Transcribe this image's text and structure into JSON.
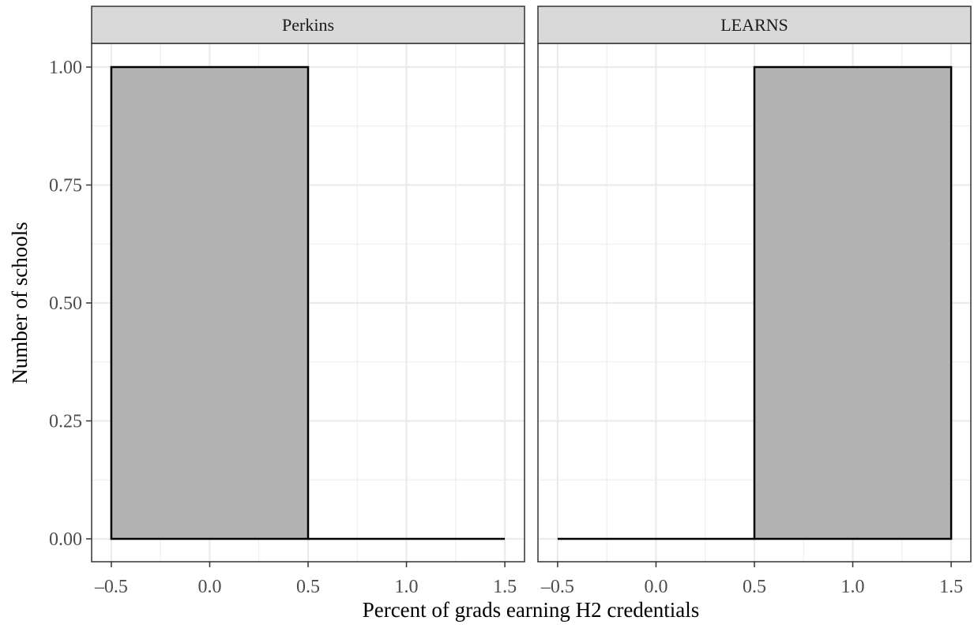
{
  "chart_data": {
    "type": "bar",
    "variant": "faceted histogram",
    "xlabel": "Percent of grads earning H2 credentials",
    "ylabel": "Number of schools",
    "xlim": [
      -0.5,
      1.5
    ],
    "ylim": [
      0,
      1
    ],
    "x_ticks": [
      "-0.5",
      "0.0",
      "0.5",
      "1.0",
      "1.5"
    ],
    "y_ticks": [
      "0.00",
      "0.25",
      "0.50",
      "0.75",
      "1.00"
    ],
    "grid": true,
    "colors": {
      "bar_fill": "#b3b3b3",
      "bar_outline": "#000000",
      "strip_fill": "#d9d9d9",
      "grid": "#ebebeb",
      "panel_border": "#333333"
    },
    "facets": [
      {
        "label": "Perkins",
        "bins": [
          {
            "x0": -0.5,
            "x1": 0.5,
            "count": 1
          },
          {
            "x0": 0.5,
            "x1": 1.5,
            "count": 0
          }
        ]
      },
      {
        "label": "LEARNS",
        "bins": [
          {
            "x0": -0.5,
            "x1": 0.5,
            "count": 0
          },
          {
            "x0": 0.5,
            "x1": 1.5,
            "count": 1
          }
        ]
      }
    ]
  }
}
